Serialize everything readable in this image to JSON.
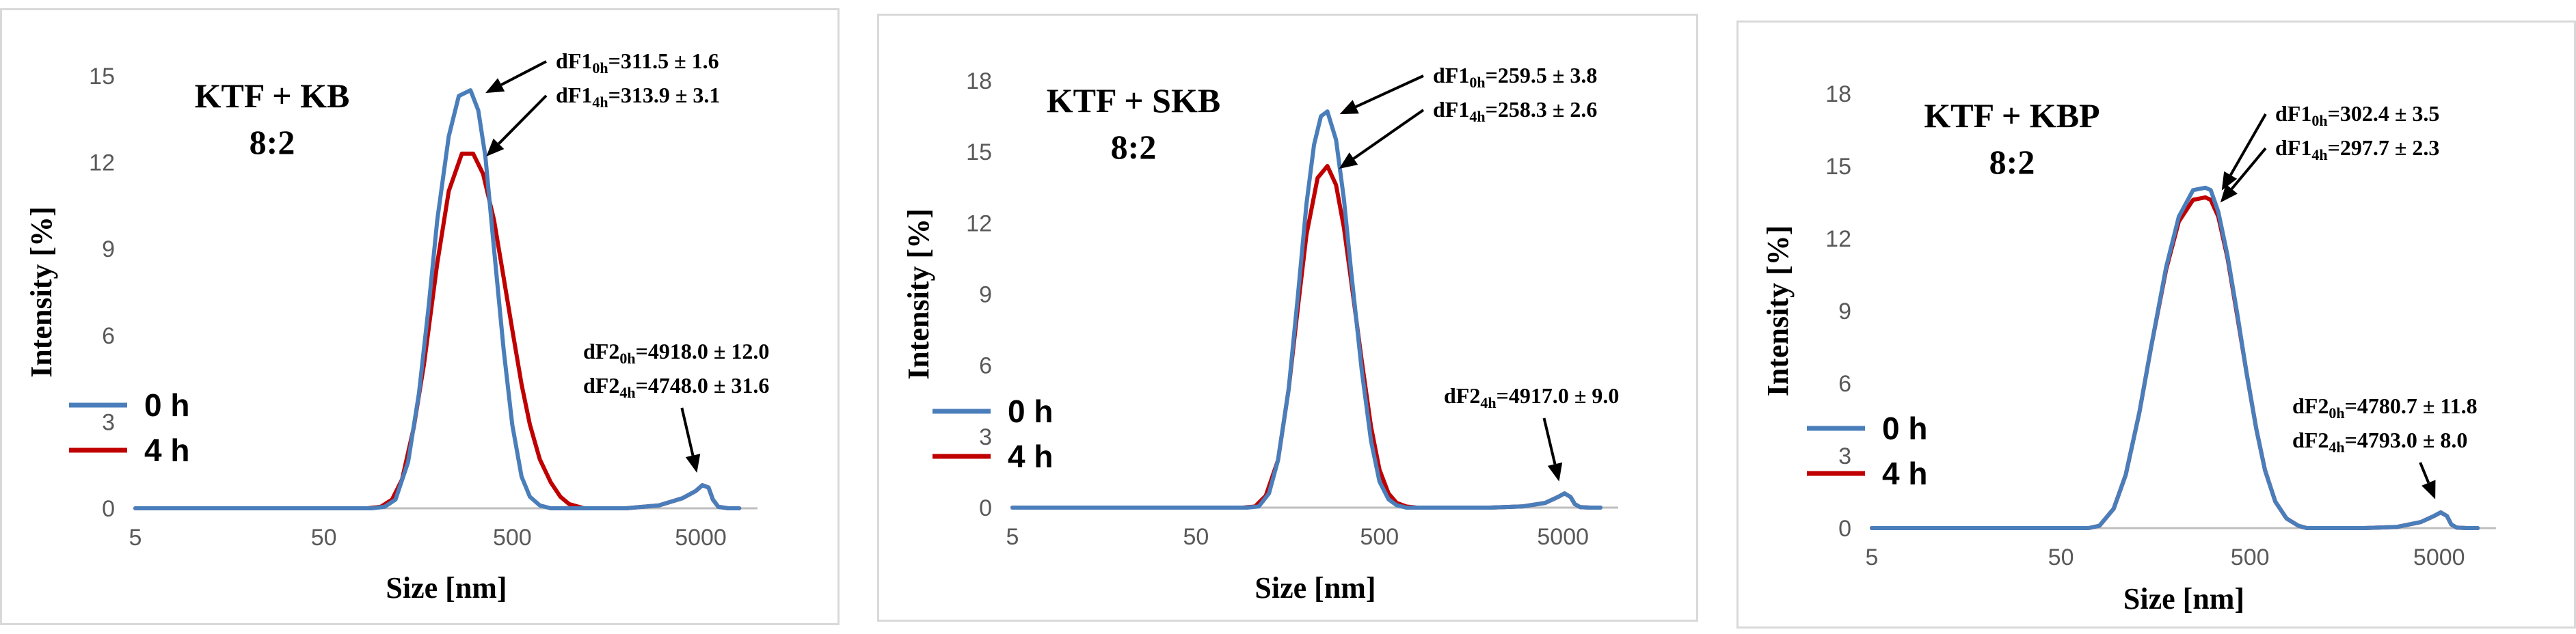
{
  "chart_data": [
    {
      "type": "line",
      "title": "KTF + KB",
      "subtitle": "8:2",
      "xlabel": "Size [nm]",
      "ylabel": "Intensity [%]",
      "xscale": "log",
      "xlim": [
        5,
        10000
      ],
      "ylim": [
        0,
        15
      ],
      "xticks": [
        5,
        50,
        500,
        5000
      ],
      "yticks": [
        0,
        3,
        6,
        9,
        12,
        15
      ],
      "legend_position": "bottom-left",
      "series": [
        {
          "name": "0 h",
          "color": "#4a7ebb",
          "x": [
            5,
            90,
            105,
            120,
            140,
            160,
            180,
            200,
            230,
            260,
            300,
            330,
            360,
            400,
            450,
            500,
            560,
            620,
            700,
            800,
            1000,
            2000,
            3000,
            4000,
            4700,
            5100,
            5500,
            5800,
            6200,
            7000,
            8000
          ],
          "y": [
            0,
            0,
            0.05,
            0.3,
            1.6,
            4.0,
            7.0,
            10.0,
            12.9,
            14.3,
            14.5,
            13.8,
            12.2,
            9.0,
            5.5,
            2.9,
            1.1,
            0.4,
            0.1,
            0,
            0,
            0,
            0.1,
            0.35,
            0.6,
            0.8,
            0.72,
            0.3,
            0.05,
            0,
            0
          ]
        },
        {
          "name": "4 h",
          "color": "#c00000",
          "x": [
            5,
            85,
            100,
            115,
            130,
            150,
            170,
            200,
            230,
            270,
            310,
            350,
            400,
            450,
            500,
            560,
            620,
            700,
            800,
            900,
            1000,
            1200,
            2000,
            3000,
            4000,
            4700,
            5100,
            5500,
            5800,
            6200,
            7000,
            8000
          ],
          "y": [
            0,
            0,
            0.05,
            0.3,
            1.0,
            2.8,
            5.0,
            8.5,
            11.0,
            12.3,
            12.3,
            11.6,
            10.0,
            8.0,
            6.2,
            4.3,
            2.9,
            1.7,
            0.9,
            0.4,
            0.15,
            0,
            0,
            0.1,
            0.35,
            0.6,
            0.8,
            0.72,
            0.3,
            0.05,
            0,
            0
          ]
        }
      ],
      "annotations": [
        {
          "label": "dF1",
          "sub": "0h",
          "value": "=311.5 ± 1.6",
          "arrow_to": [
            310,
            14.5
          ]
        },
        {
          "label": "dF1",
          "sub": "4h",
          "value": "=313.9 ± 3.1",
          "arrow_to": [
            313,
            12.3
          ]
        },
        {
          "label": "dF2",
          "sub": "0h",
          "value": "=4918.0 ± 12.0"
        },
        {
          "label": "dF2",
          "sub": "4h",
          "value": "=4748.0 ± 31.6",
          "arrow_to": [
            5100,
            0.9
          ]
        }
      ]
    },
    {
      "type": "line",
      "title": "KTF + SKB",
      "subtitle": "8:2",
      "xlabel": "Size [nm]",
      "ylabel": "Intensity [%]",
      "xscale": "log",
      "xlim": [
        5,
        10000
      ],
      "ylim": [
        0,
        18
      ],
      "xticks": [
        5,
        50,
        500,
        5000
      ],
      "yticks": [
        0,
        3,
        6,
        9,
        12,
        15,
        18
      ],
      "legend_position": "bottom-left",
      "series": [
        {
          "name": "0 h",
          "color": "#4a7ebb",
          "x": [
            5,
            95,
            110,
            125,
            140,
            160,
            180,
            200,
            220,
            240,
            260,
            290,
            320,
            350,
            400,
            450,
            500,
            560,
            620,
            700,
            800,
            1000,
            2000,
            3000,
            4000,
            4700,
            5100,
            5500,
            5800,
            6200,
            7000,
            8000
          ],
          "y": [
            0,
            0,
            0.05,
            0.6,
            2.0,
            5.0,
            9.0,
            12.8,
            15.3,
            16.5,
            16.7,
            15.5,
            13.0,
            10.0,
            5.8,
            2.8,
            1.1,
            0.35,
            0.1,
            0,
            0,
            0,
            0,
            0.05,
            0.2,
            0.45,
            0.6,
            0.45,
            0.15,
            0.02,
            0,
            0
          ]
        },
        {
          "name": "4 h",
          "color": "#c00000",
          "x": [
            5,
            90,
            105,
            120,
            140,
            160,
            180,
            200,
            230,
            260,
            290,
            320,
            350,
            400,
            450,
            500,
            560,
            620,
            700,
            800,
            1000,
            2000,
            3000,
            4000,
            4700,
            5100,
            5500,
            5800,
            6200,
            7000,
            8000
          ],
          "y": [
            0,
            0,
            0.05,
            0.5,
            2.0,
            5.0,
            8.5,
            11.5,
            13.9,
            14.4,
            13.6,
            11.8,
            9.6,
            6.2,
            3.4,
            1.6,
            0.6,
            0.2,
            0.05,
            0,
            0,
            0,
            0.05,
            0.2,
            0.45,
            0.6,
            0.45,
            0.15,
            0.02,
            0,
            0
          ]
        }
      ],
      "annotations": [
        {
          "label": "dF1",
          "sub": "0h",
          "value": "=259.5 ± 3.8",
          "arrow_to": [
            260,
            16.7
          ]
        },
        {
          "label": "dF1",
          "sub": "4h",
          "value": "=258.3 ± 2.6",
          "arrow_to": [
            258,
            14.4
          ]
        },
        {
          "label": "dF2",
          "sub": "4h",
          "value": "=4917.0 ± 9.0",
          "arrow_to": [
            5100,
            0.7
          ]
        }
      ]
    },
    {
      "type": "line",
      "title": "KTF + KBP",
      "subtitle": "8:2",
      "xlabel": "Size [nm]",
      "ylabel": "Intensity [%]",
      "xscale": "log",
      "xlim": [
        5,
        10000
      ],
      "ylim": [
        0,
        18
      ],
      "xticks": [
        5,
        50,
        500,
        5000
      ],
      "yticks": [
        0,
        3,
        6,
        9,
        12,
        15,
        18
      ],
      "legend_position": "bottom-left",
      "series": [
        {
          "name": "0 h",
          "color": "#4a7ebb",
          "x": [
            5,
            70,
            80,
            95,
            110,
            130,
            150,
            180,
            210,
            250,
            290,
            310,
            340,
            380,
            430,
            480,
            540,
            600,
            680,
            780,
            900,
            1000,
            2000,
            3000,
            4000,
            4700,
            5100,
            5500,
            5800,
            6200,
            7000,
            8000
          ],
          "y": [
            0,
            0,
            0.1,
            0.8,
            2.2,
            4.8,
            7.5,
            10.8,
            12.9,
            14.0,
            14.1,
            14.0,
            13.1,
            11.3,
            8.8,
            6.4,
            4.1,
            2.4,
            1.1,
            0.4,
            0.1,
            0,
            0,
            0.05,
            0.25,
            0.5,
            0.65,
            0.5,
            0.15,
            0.02,
            0,
            0
          ]
        },
        {
          "name": "4 h",
          "color": "#c00000",
          "x": [
            5,
            70,
            80,
            95,
            110,
            130,
            150,
            180,
            210,
            250,
            290,
            310,
            340,
            380,
            430,
            480,
            540,
            600,
            680,
            780,
            900,
            1000,
            2000,
            3000,
            4000,
            4700,
            5100,
            5500,
            5800,
            6200,
            7000,
            8000
          ],
          "y": [
            0,
            0,
            0.1,
            0.8,
            2.2,
            4.8,
            7.5,
            10.7,
            12.7,
            13.6,
            13.7,
            13.6,
            12.9,
            11.2,
            8.7,
            6.4,
            4.1,
            2.4,
            1.1,
            0.4,
            0.1,
            0,
            0,
            0.05,
            0.25,
            0.5,
            0.65,
            0.5,
            0.15,
            0.02,
            0,
            0
          ]
        }
      ],
      "annotations": [
        {
          "label": "dF1",
          "sub": "0h",
          "value": "=302.4 ± 3.5",
          "arrow_to": [
            305,
            14.1
          ]
        },
        {
          "label": "dF1",
          "sub": "4h",
          "value": "=297.7 ± 2.3",
          "arrow_to": [
            300,
            13.6
          ]
        },
        {
          "label": "dF2",
          "sub": "0h",
          "value": "=4780.7 ± 11.8"
        },
        {
          "label": "dF2",
          "sub": "4h",
          "value": "=4793.0 ± 8.0",
          "arrow_to": [
            5100,
            0.8
          ]
        }
      ]
    }
  ]
}
